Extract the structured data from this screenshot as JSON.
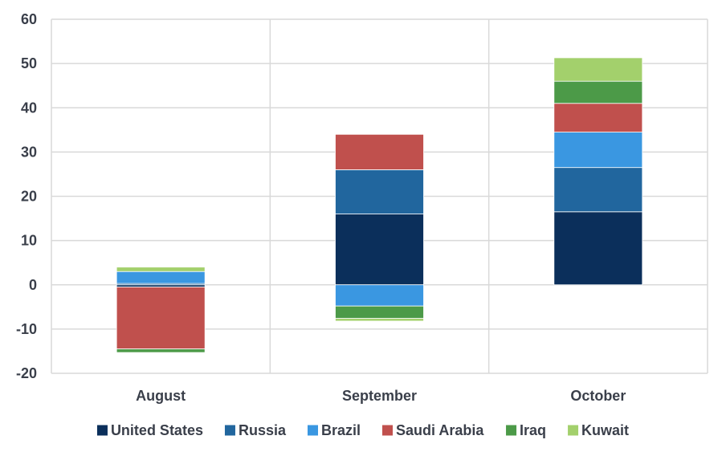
{
  "chart_data": {
    "type": "bar",
    "stacked": true,
    "title": "",
    "xlabel": "",
    "ylabel": "",
    "ylim": [
      -20,
      60
    ],
    "yticks": [
      60,
      50,
      40,
      30,
      20,
      10,
      0,
      -10,
      -20
    ],
    "grid": true,
    "legend_position": "bottom",
    "categories": [
      "August",
      "September",
      "October"
    ],
    "series": [
      {
        "name": "United States",
        "color": "#0b2f5b",
        "values": [
          -0.5,
          16,
          16.5
        ]
      },
      {
        "name": "Russia",
        "color": "#21669e",
        "values": [
          0.3,
          10,
          10
        ]
      },
      {
        "name": "Brazil",
        "color": "#3a97e1",
        "values": [
          2.7,
          -4.8,
          8
        ]
      },
      {
        "name": "Saudi Arabia",
        "color": "#c0504d",
        "values": [
          -14,
          8,
          6.5
        ]
      },
      {
        "name": "Iraq",
        "color": "#4c9a48",
        "values": [
          -0.8,
          -2.8,
          5
        ]
      },
      {
        "name": "Kuwait",
        "color": "#a3d06c",
        "values": [
          1,
          -0.6,
          5.3
        ]
      }
    ]
  }
}
